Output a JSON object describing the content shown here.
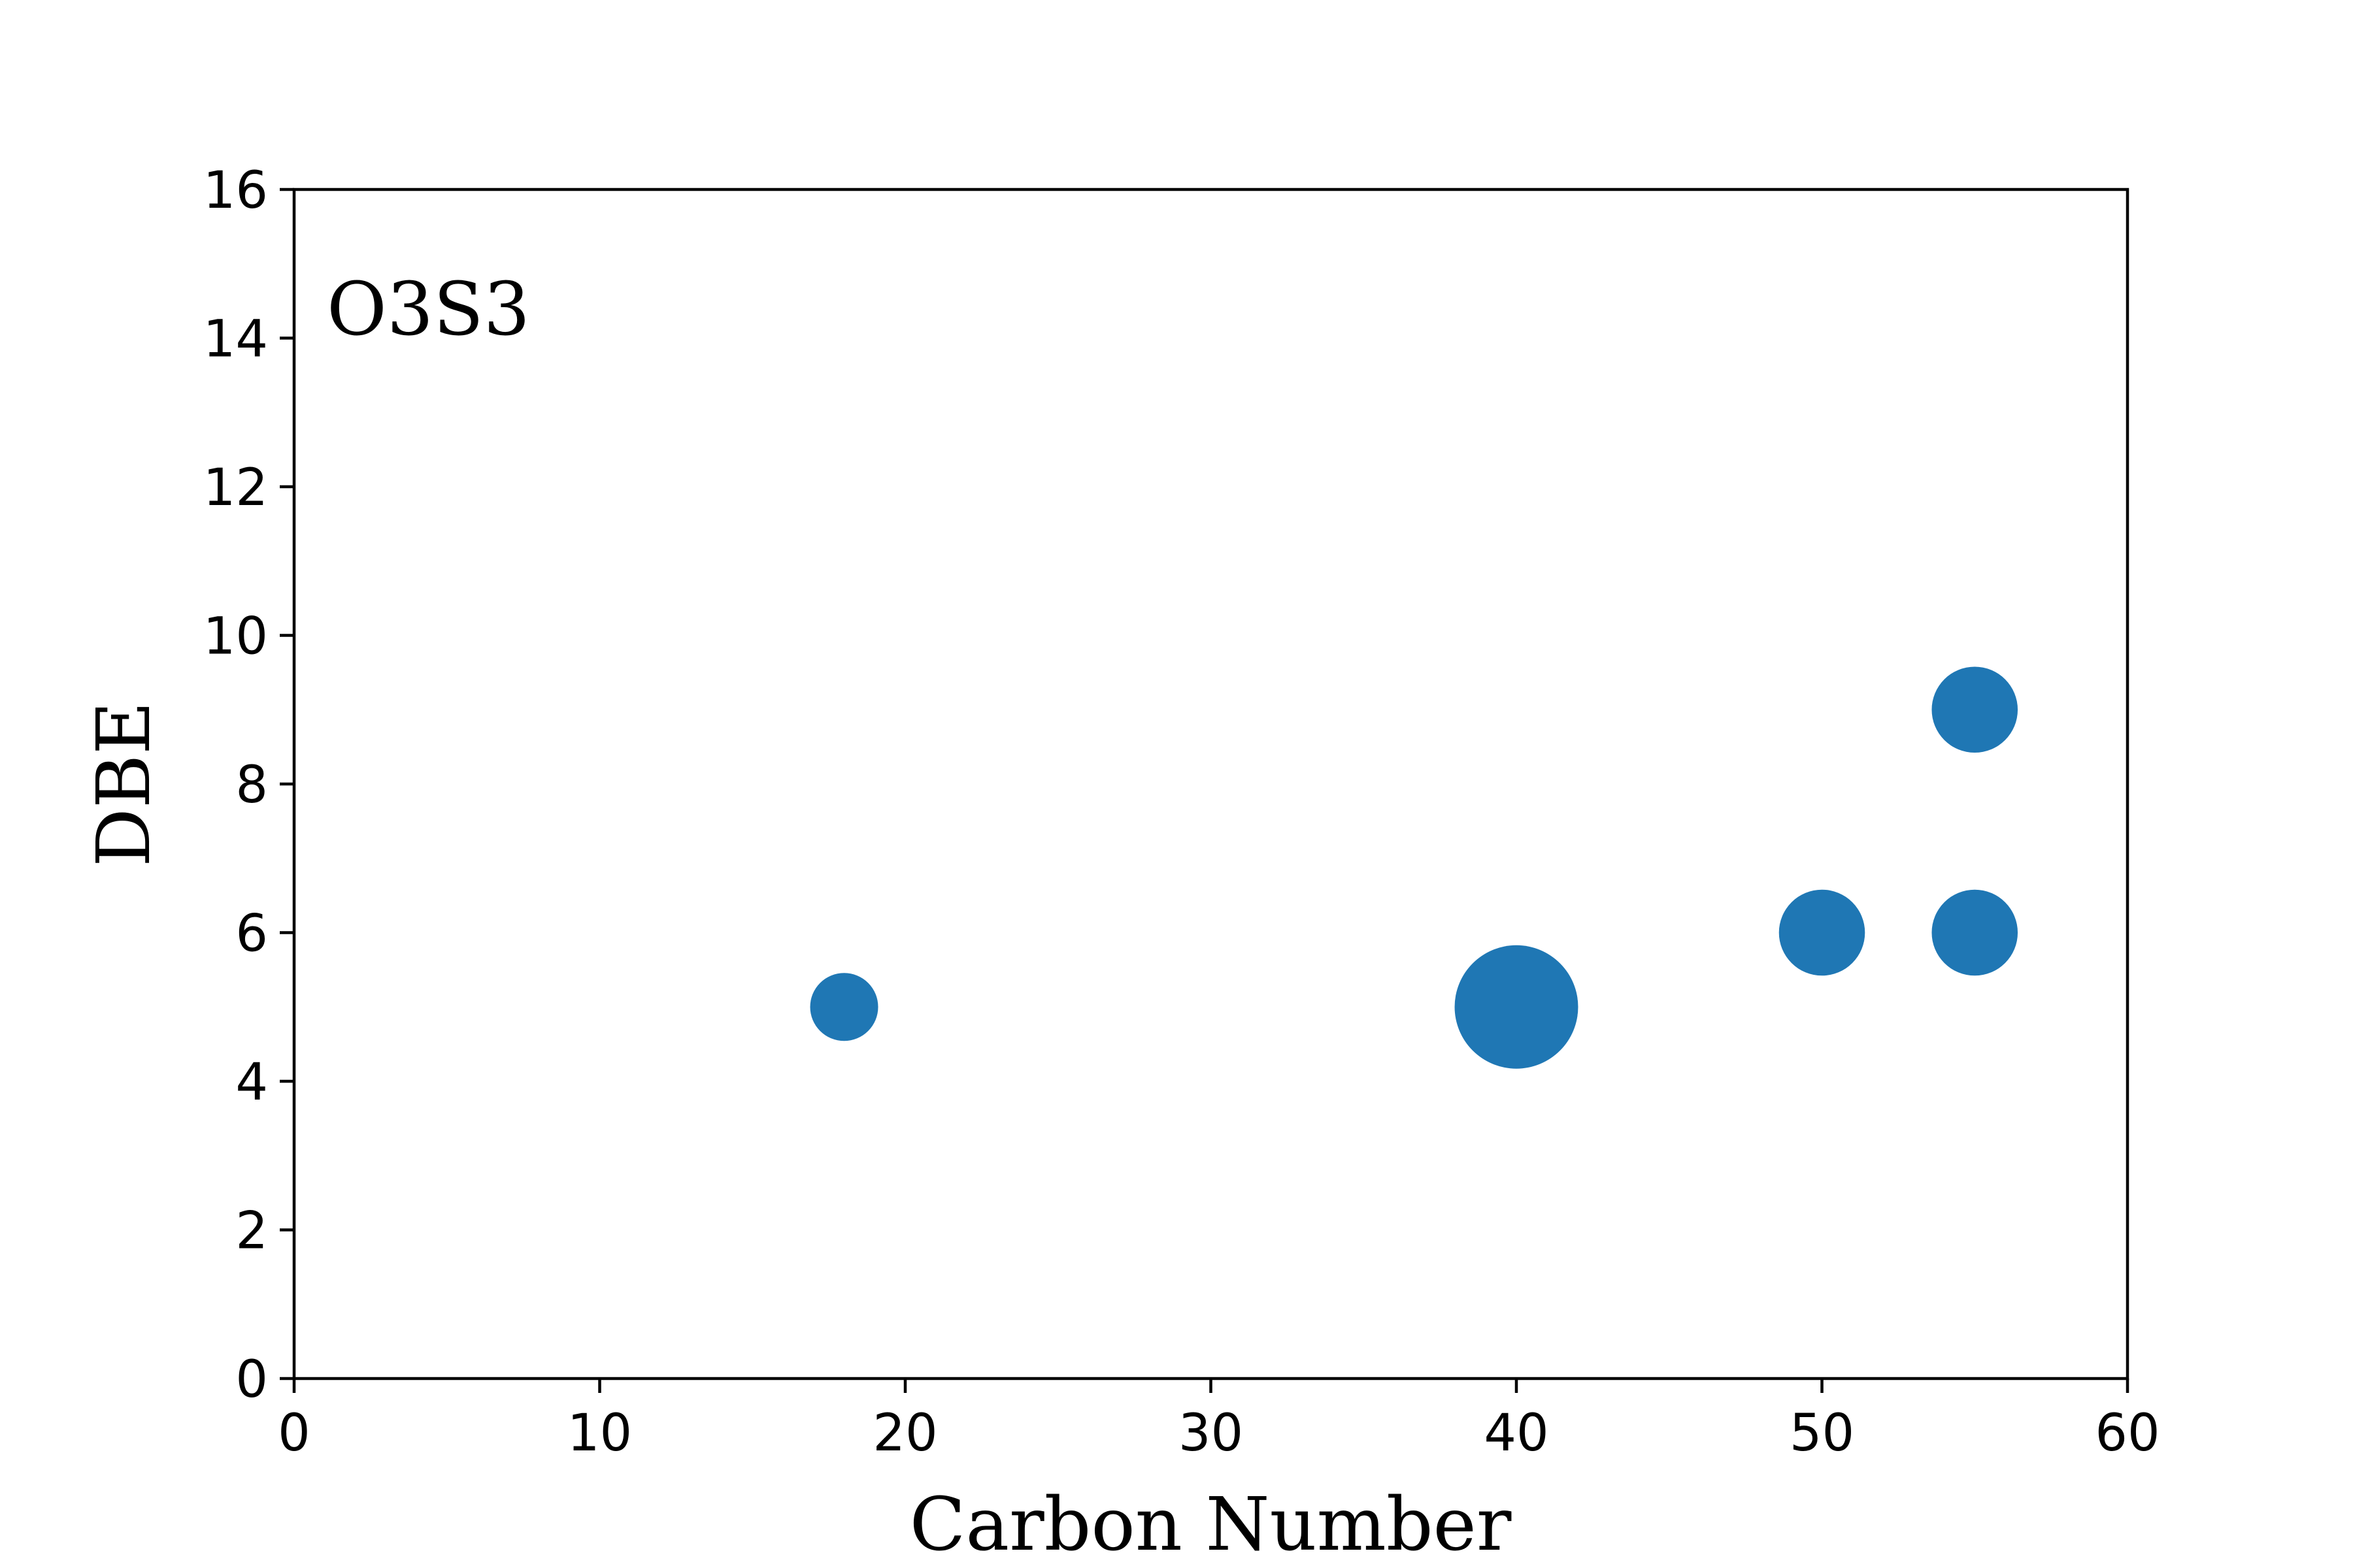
{
  "chart_data": {
    "type": "scatter",
    "xlabel": "Carbon Number",
    "ylabel": "DBE",
    "annotation": "O3S3",
    "xlim": [
      0,
      60
    ],
    "ylim": [
      0,
      16
    ],
    "xticks": [
      0,
      10,
      20,
      30,
      40,
      50,
      60
    ],
    "yticks": [
      0,
      2,
      4,
      6,
      8,
      10,
      12,
      14,
      16
    ],
    "grid": false,
    "marker_color": "#1f77b4",
    "points": [
      {
        "x": 18,
        "y": 5,
        "size": 1.0
      },
      {
        "x": 40,
        "y": 5,
        "size": 3.3
      },
      {
        "x": 50,
        "y": 6,
        "size": 1.6
      },
      {
        "x": 55,
        "y": 6,
        "size": 1.6
      },
      {
        "x": 55,
        "y": 9,
        "size": 1.6
      }
    ]
  }
}
